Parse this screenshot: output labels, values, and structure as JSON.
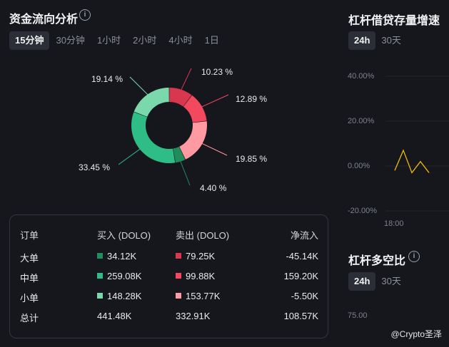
{
  "flow": {
    "title": "资金流向分析",
    "tabs": [
      {
        "label": "15分钟",
        "active": true
      },
      {
        "label": "30分钟",
        "active": false
      },
      {
        "label": "1小时",
        "active": false
      },
      {
        "label": "2小时",
        "active": false
      },
      {
        "label": "4小时",
        "active": false
      },
      {
        "label": "1日",
        "active": false
      }
    ],
    "donut": [
      {
        "label": "10.23 %",
        "value": 10.23,
        "color": "#d9364f"
      },
      {
        "label": "12.89 %",
        "value": 12.89,
        "color": "#f2495f"
      },
      {
        "label": "19.85 %",
        "value": 19.85,
        "color": "#ff9aa2"
      },
      {
        "label": "4.40 %",
        "value": 4.4,
        "color": "#218c5c"
      },
      {
        "label": "33.45 %",
        "value": 33.45,
        "color": "#2ebd85"
      },
      {
        "label": "19.14 %",
        "value": 19.14,
        "color": "#7ad8ac"
      }
    ],
    "table": {
      "headers": [
        "订单",
        "买入 (DOLO)",
        "卖出 (DOLO)",
        "净流入"
      ],
      "rows": [
        {
          "name": "大单",
          "buy": "34.12K",
          "sell": "79.25K",
          "net": "-45.14K",
          "buy_color": "#218c5c",
          "sell_color": "#d9364f"
        },
        {
          "name": "中单",
          "buy": "259.08K",
          "sell": "99.88K",
          "net": "159.20K",
          "buy_color": "#2ebd85",
          "sell_color": "#f2495f"
        },
        {
          "name": "小单",
          "buy": "148.28K",
          "sell": "153.77K",
          "net": "-5.50K",
          "buy_color": "#7ad8ac",
          "sell_color": "#ff9aa2"
        }
      ],
      "total": {
        "name": "总计",
        "buy": "441.48K",
        "sell": "332.91K",
        "net": "108.57K"
      }
    }
  },
  "leverage_growth": {
    "title": "杠杆借贷存量增速",
    "tabs": [
      {
        "label": "24h",
        "active": true
      },
      {
        "label": "30天",
        "active": false
      }
    ],
    "y_ticks": [
      "40.00%",
      "20.00%",
      "0.00%",
      "-20.00%"
    ],
    "x_tick": "18:00",
    "line_color": "#f0b90b",
    "chart_data": {
      "type": "line",
      "y_unit": "%",
      "ylim": [
        -20,
        40
      ],
      "values": [
        -2,
        7,
        -3,
        2,
        -3
      ]
    }
  },
  "long_short": {
    "title": "杠杆多空比",
    "tabs": [
      {
        "label": "24h",
        "active": true
      },
      {
        "label": "30天",
        "active": false
      }
    ],
    "y_tick": "75.00"
  },
  "watermark": "@Crypto圣泽"
}
